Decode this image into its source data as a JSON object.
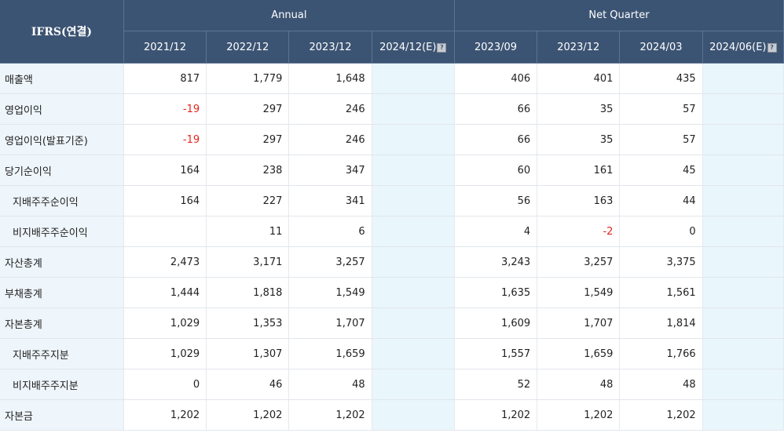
{
  "header": {
    "corner": "IFRS(연결)",
    "group_annual": "Annual",
    "group_quarter": "Net Quarter",
    "columns": [
      "2021/12",
      "2022/12",
      "2023/12",
      "2024/12(E)",
      "2023/09",
      "2023/12",
      "2024/03",
      "2024/06(E)"
    ]
  },
  "rows": [
    {
      "label": "매출액",
      "sub": false,
      "values": [
        "817",
        "1,779",
        "1,648",
        "",
        "406",
        "401",
        "435",
        ""
      ]
    },
    {
      "label": "영업이익",
      "sub": false,
      "values": [
        "-19",
        "297",
        "246",
        "",
        "66",
        "35",
        "57",
        ""
      ]
    },
    {
      "label": "영업이익(발표기준)",
      "sub": false,
      "values": [
        "-19",
        "297",
        "246",
        "",
        "66",
        "35",
        "57",
        ""
      ]
    },
    {
      "label": "당기순이익",
      "sub": false,
      "values": [
        "164",
        "238",
        "347",
        "",
        "60",
        "161",
        "45",
        ""
      ]
    },
    {
      "label": "지배주주순이익",
      "sub": true,
      "values": [
        "164",
        "227",
        "341",
        "",
        "56",
        "163",
        "44",
        ""
      ]
    },
    {
      "label": "비지배주주순이익",
      "sub": true,
      "values": [
        "",
        "11",
        "6",
        "",
        "4",
        "-2",
        "0",
        ""
      ]
    },
    {
      "label": "자산총계",
      "sub": false,
      "values": [
        "2,473",
        "3,171",
        "3,257",
        "",
        "3,243",
        "3,257",
        "3,375",
        ""
      ]
    },
    {
      "label": "부채총계",
      "sub": false,
      "values": [
        "1,444",
        "1,818",
        "1,549",
        "",
        "1,635",
        "1,549",
        "1,561",
        ""
      ]
    },
    {
      "label": "자본총계",
      "sub": false,
      "values": [
        "1,029",
        "1,353",
        "1,707",
        "",
        "1,609",
        "1,707",
        "1,814",
        ""
      ]
    },
    {
      "label": "지배주주지분",
      "sub": true,
      "values": [
        "1,029",
        "1,307",
        "1,659",
        "",
        "1,557",
        "1,659",
        "1,766",
        ""
      ]
    },
    {
      "label": "비지배주주지분",
      "sub": true,
      "values": [
        "0",
        "46",
        "48",
        "",
        "52",
        "48",
        "48",
        ""
      ]
    },
    {
      "label": "자본금",
      "sub": false,
      "values": [
        "1,202",
        "1,202",
        "1,202",
        "",
        "1,202",
        "1,202",
        "1,202",
        ""
      ]
    }
  ],
  "colors": {
    "header_bg": "#3c5473",
    "label_bg": "#eef5fb",
    "estimate_bg": "#e9f6fc",
    "negative": "#e3241b"
  },
  "icons": {
    "estimate_info": "info-box-icon"
  }
}
